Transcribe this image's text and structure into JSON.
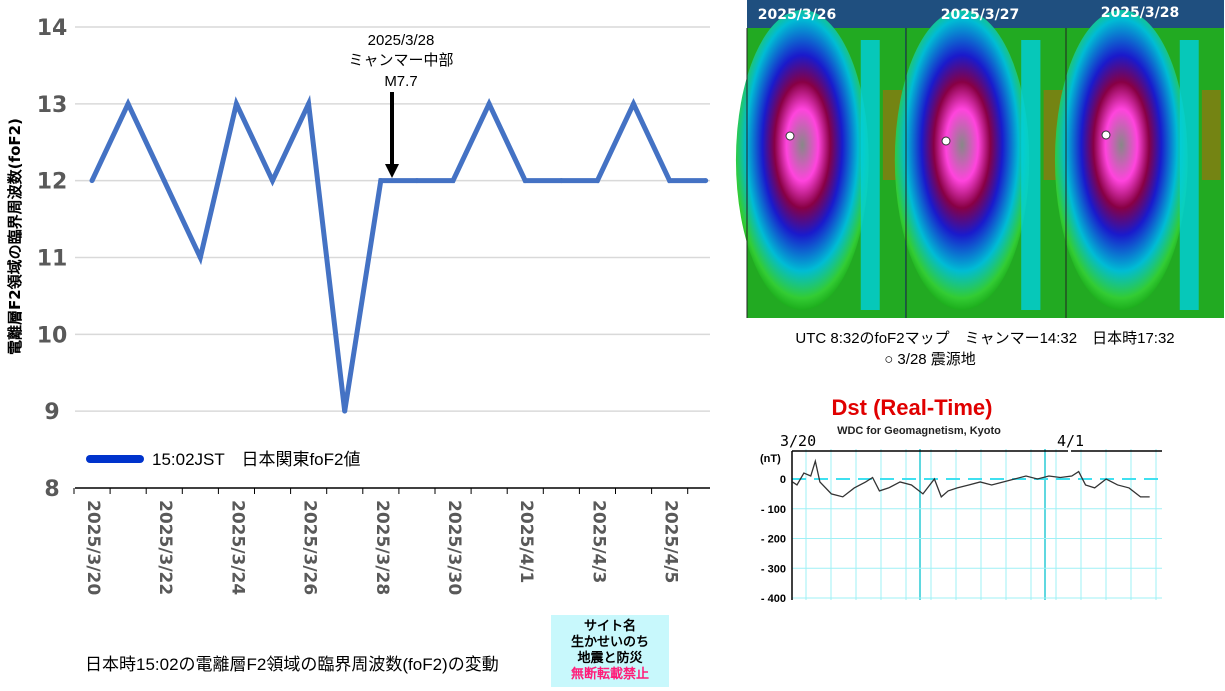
{
  "chart_data": [
    {
      "type": "line",
      "title": "日本時15:02の電離層F2領域の臨界周波数(foF2)の変動",
      "ylabel": "電離層F2領域の臨界周波数(foF2)",
      "xlabel": "",
      "ylim": [
        8,
        14
      ],
      "yticks": [
        "8",
        "9",
        "10",
        "11",
        "12",
        "13",
        "14"
      ],
      "grid": true,
      "legend": {
        "label": "15:02JST　日本関東foF2値",
        "placement": "bottom-left"
      },
      "x": [
        "2025/3/20",
        "2025/3/21",
        "2025/3/22",
        "2025/3/23",
        "2025/3/24",
        "2025/3/25",
        "2025/3/26",
        "2025/3/27",
        "2025/3/28",
        "2025/3/29",
        "2025/3/30",
        "2025/3/31",
        "2025/4/1",
        "2025/4/2",
        "2025/4/3",
        "2025/4/4",
        "2025/4/5",
        "2025/4/6"
      ],
      "xtick_labels": [
        "2025/3/20",
        "2025/3/22",
        "2025/3/24",
        "2025/3/26",
        "2025/3/28",
        "2025/3/30",
        "2025/4/1",
        "2025/4/3",
        "2025/4/5"
      ],
      "series": [
        {
          "name": "15:02JST　日本関東foF2値",
          "color": "#4472c4",
          "values": [
            12,
            13,
            12,
            11,
            13,
            12,
            13,
            9,
            12,
            12,
            12,
            13,
            12,
            12,
            12,
            13,
            12,
            12
          ]
        }
      ],
      "annotation": {
        "x": "2025/3/28",
        "lines": [
          "2025/3/28",
          "ミャンマー中部",
          "M7.7"
        ]
      }
    },
    {
      "type": "line",
      "title": "Dst (Real-Time)",
      "subtitle": "WDC for Geomagnetism, Kyoto",
      "ylabel": "(nT)",
      "ylim": [
        -400,
        50
      ],
      "yticks": [
        "0",
        "- 100",
        "- 200",
        "- 300",
        "- 400"
      ],
      "date_labels": [
        "3/20",
        "4/1"
      ],
      "x_days_from_3_20": [
        -0.2,
        0,
        0.3,
        0.6,
        0.8,
        1,
        1.5,
        2,
        2.5,
        3,
        3.3,
        3.6,
        4,
        4.5,
        5,
        5.5,
        6,
        6.3,
        6.6,
        7,
        7.5,
        8,
        8.5,
        9,
        9.5,
        10,
        10.5,
        11,
        11.5,
        12,
        12.3,
        12.6,
        13,
        13.5,
        14,
        14.5,
        15,
        15.4
      ],
      "values": [
        -10,
        -20,
        20,
        10,
        60,
        -10,
        -50,
        -60,
        -30,
        -10,
        5,
        -40,
        -30,
        -10,
        -20,
        -50,
        0,
        -60,
        -40,
        -30,
        -20,
        -10,
        -20,
        -10,
        0,
        10,
        0,
        10,
        5,
        10,
        25,
        -20,
        -30,
        0,
        -20,
        -30,
        -60,
        -60
      ]
    }
  ],
  "map": {
    "dates": [
      "2025/3/26",
      "2025/3/27",
      "2025/3/28"
    ],
    "caption_line1": "UTC 8:32のfoF2マップ　ミャンマー14:32　日本時17:32",
    "caption_line2": "○  3/28  震源地"
  },
  "notice": {
    "line1": "サイト名",
    "line2": "生かせいのち",
    "line3": "地震と防災",
    "line4": "無断転載禁止"
  },
  "colors": {
    "series": "#4472c4",
    "legend_line": "#0033cc",
    "dst_title": "#e00000",
    "dst_grid": "#9ff0f5"
  }
}
